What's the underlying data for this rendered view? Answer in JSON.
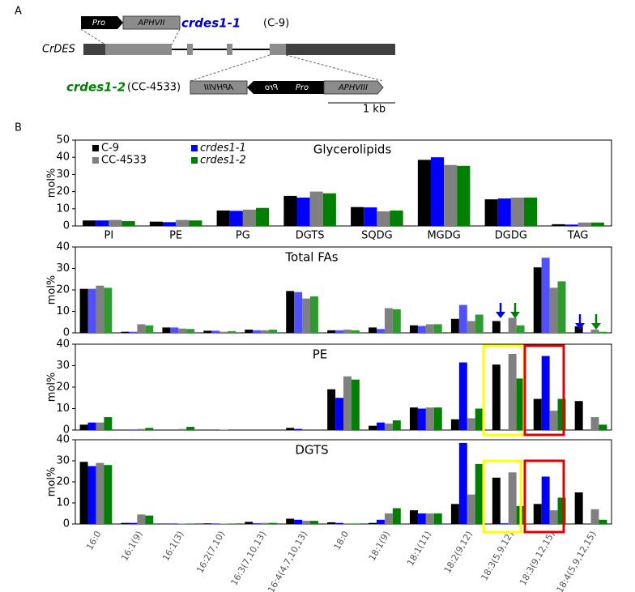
{
  "diagram": {
    "label": "A",
    "gene": "CrDES",
    "construct1": {
      "name": "crdes1-1",
      "strain": "(C-9)",
      "pro": "Pro",
      "marker": "APHVII"
    },
    "construct2": {
      "name": "crdes1-2",
      "strain": "(CC-4533)",
      "marker_reversed": "APHVIII",
      "pro": "Pro",
      "marker": "APHVIII"
    },
    "scale": "1 kb"
  },
  "panel_b_label": "B",
  "chart_data": [
    {
      "type": "bar",
      "title": "Glycerolipids",
      "y_label": "mol%",
      "categories": [
        "PI",
        "PE",
        "PG",
        "DGTS",
        "SQDG",
        "MGDG",
        "DGDG",
        "TAG"
      ],
      "ylim": [
        0,
        50
      ],
      "yticks": [
        0,
        10,
        20,
        30,
        40,
        50
      ],
      "series": [
        {
          "name": "C-9",
          "color": "#000000",
          "values": [
            3.2,
            2.5,
            9,
            17.5,
            11,
            38.5,
            15.5,
            1
          ]
        },
        {
          "name": "crdes1-1",
          "color": "#0000ff",
          "values": [
            3.2,
            2.2,
            8.8,
            16.5,
            10.8,
            40,
            16,
            0.8
          ]
        },
        {
          "name": "CC-4533",
          "color": "#808080",
          "values": [
            3.5,
            3.5,
            9.5,
            20,
            8.5,
            35.5,
            16.5,
            2
          ]
        },
        {
          "name": "crdes1-2",
          "color": "#008000",
          "values": [
            2.8,
            3.2,
            10.5,
            19,
            9,
            35,
            16.5,
            2
          ]
        }
      ]
    },
    {
      "type": "bar",
      "title": "Total FAs",
      "y_label": "mol%",
      "ylim": [
        0,
        40
      ],
      "yticks": [
        0,
        10,
        20,
        30,
        40
      ],
      "series": [
        {
          "color": "#000000",
          "values": [
            20.5,
            0.5,
            2.5,
            1,
            1.5,
            19.5,
            1.2,
            2.5,
            3.5,
            6.5,
            5.5,
            30.5,
            3
          ]
        },
        {
          "color": "#5050ff",
          "values": [
            20.5,
            0.5,
            2.5,
            1,
            1.2,
            19,
            1.2,
            1.8,
            3.2,
            13,
            0,
            35,
            0.2
          ]
        },
        {
          "color": "#808080",
          "values": [
            22,
            4,
            2,
            0.5,
            1.2,
            16,
            1.5,
            11.5,
            4,
            5.5,
            7,
            21,
            1.5
          ]
        },
        {
          "color": "#2e9b2e",
          "values": [
            21,
            3.5,
            1.8,
            0.8,
            1.5,
            17,
            1.2,
            11,
            4,
            8.5,
            3.5,
            24,
            0.5
          ]
        }
      ]
    },
    {
      "type": "bar",
      "title": "PE",
      "y_label": "mol%",
      "ylim": [
        0,
        40
      ],
      "yticks": [
        0,
        10,
        20,
        30,
        40
      ],
      "series": [
        {
          "color": "#000000",
          "values": [
            2.5,
            0,
            0,
            0,
            0,
            1,
            19,
            2,
            10.5,
            5,
            30.5,
            14.5,
            13.5
          ]
        },
        {
          "color": "#0000ff",
          "values": [
            3.5,
            0.2,
            0,
            0,
            0,
            0.5,
            15,
            3.5,
            10,
            31.5,
            0,
            34.5,
            0
          ]
        },
        {
          "color": "#808080",
          "values": [
            3.5,
            0.5,
            0.5,
            0.2,
            0,
            0,
            25,
            3,
            10.5,
            5.5,
            35.5,
            9,
            6
          ]
        },
        {
          "color": "#008000",
          "values": [
            6,
            1,
            1.5,
            0,
            0,
            0,
            23.5,
            4.5,
            10.5,
            10,
            24,
            14.5,
            2.5
          ]
        }
      ]
    },
    {
      "type": "bar",
      "title": "DGTS",
      "y_label": "mol%",
      "categories": [
        "16:0",
        "16:1(9)",
        "16:1(3)",
        "16:2(7,10)",
        "16:3(7,10,13)",
        "16:4(4,7,10,13)",
        "18:0",
        "18:1(9)",
        "18:1(11)",
        "18:2(9,12)",
        "18:3(5,9,12)",
        "18:3(9,12,15)",
        "18:4(5,9,12,15)"
      ],
      "ylim": [
        0,
        40
      ],
      "yticks": [
        0,
        10,
        20,
        30,
        40
      ],
      "series": [
        {
          "color": "#000000",
          "values": [
            29.5,
            0.5,
            0.2,
            0.3,
            1,
            2.5,
            0.8,
            0.5,
            6.5,
            9.5,
            22,
            9.5,
            15
          ]
        },
        {
          "color": "#0000ff",
          "values": [
            27.5,
            0.5,
            0.2,
            0.2,
            0.3,
            2,
            0.5,
            2,
            5,
            38.5,
            0.3,
            22.5,
            0
          ]
        },
        {
          "color": "#808080",
          "values": [
            29,
            4.5,
            0.2,
            0.2,
            0.5,
            1.5,
            0.3,
            5,
            5,
            14,
            24.5,
            6.5,
            7
          ]
        },
        {
          "color": "#008000",
          "values": [
            28,
            4,
            0.2,
            0.2,
            0.5,
            1.5,
            0.2,
            7.5,
            5,
            28.5,
            8.5,
            12.5,
            2
          ]
        }
      ]
    }
  ]
}
